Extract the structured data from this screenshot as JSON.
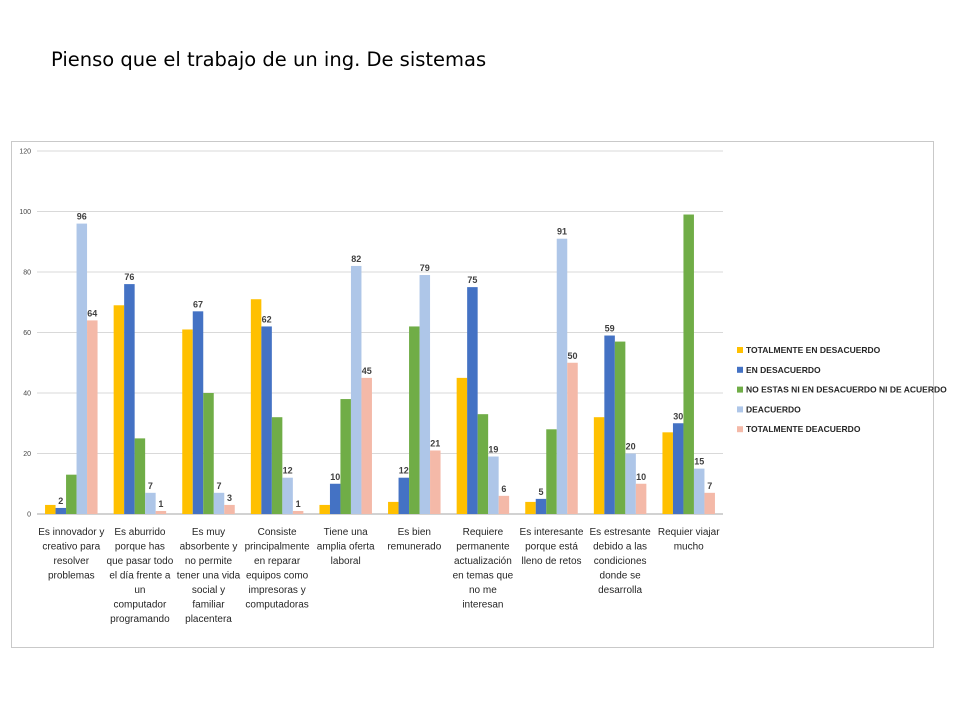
{
  "slide": {
    "title": "Pienso que el trabajo de un ing. De sistemas"
  },
  "chart_data": {
    "type": "bar",
    "title": "",
    "xlabel": "",
    "ylabel": "",
    "ylim": [
      0,
      120
    ],
    "y_ticks": [
      0,
      20,
      40,
      60,
      80,
      100,
      120
    ],
    "grid": true,
    "legend_position": "right",
    "categories": [
      [
        "Es innovador y",
        "creativo para",
        "resolver",
        "problemas"
      ],
      [
        "Es aburrido",
        "porque has",
        "que pasar todo",
        "el día frente a",
        "un",
        "computador",
        "programando"
      ],
      [
        "Es muy",
        "absorbente y",
        "no permite",
        "tener una vida",
        "social y",
        "familiar",
        "placentera"
      ],
      [
        "Consiste",
        "principalmente",
        "en reparar",
        "equipos como",
        "impresoras y",
        "computadoras"
      ],
      [
        "Tiene una",
        "amplia oferta",
        "laboral"
      ],
      [
        "Es bien",
        "remunerado"
      ],
      [
        "Requiere",
        "permanente",
        "actualización",
        "en temas que",
        "no me",
        "interesan"
      ],
      [
        "Es interesante",
        "porque está",
        "lleno de retos"
      ],
      [
        "Es estresante",
        "debido a las",
        "condiciones",
        "donde se",
        "desarrolla"
      ],
      [
        "Requier viajar",
        "mucho"
      ]
    ],
    "series": [
      {
        "name": "TOTALMENTE EN DESACUERDO",
        "color": "#ffc000",
        "values": [
          3,
          69,
          61,
          71,
          3,
          4,
          45,
          4,
          32,
          27
        ],
        "labels": [
          "",
          "",
          "",
          "",
          "",
          "",
          "",
          "",
          "",
          ""
        ]
      },
      {
        "name": "EN DESACUERDO",
        "color": "#4472c4",
        "values": [
          2,
          76,
          67,
          62,
          10,
          12,
          75,
          5,
          59,
          30
        ],
        "labels": [
          "2",
          "76",
          "67",
          "62",
          "10",
          "12",
          "75",
          "5",
          "59",
          "30"
        ]
      },
      {
        "name": "NO ESTAS NI EN DESACUERDO NI DE ACUERDO",
        "color": "#70ad47",
        "values": [
          13,
          25,
          40,
          32,
          38,
          62,
          33,
          28,
          57,
          99
        ],
        "labels": [
          "",
          "",
          "",
          "",
          "",
          "",
          "",
          "",
          "",
          ""
        ]
      },
      {
        "name": "DEACUERDO",
        "color": "#aec6e8",
        "values": [
          96,
          7,
          7,
          12,
          82,
          79,
          19,
          91,
          20,
          15
        ],
        "labels": [
          "96",
          "7",
          "7",
          "12",
          "82",
          "79",
          "19",
          "91",
          "20",
          "15"
        ]
      },
      {
        "name": "TOTALMENTE DEACUERDO",
        "color": "#f4b9a8",
        "values": [
          64,
          1,
          3,
          1,
          45,
          21,
          6,
          50,
          10,
          7
        ],
        "labels": [
          "64",
          "1",
          "3",
          "1",
          "45",
          "21",
          "6",
          "50",
          "10",
          "7"
        ]
      }
    ]
  }
}
